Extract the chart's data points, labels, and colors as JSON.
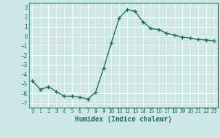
{
  "x": [
    0,
    1,
    2,
    3,
    4,
    5,
    6,
    7,
    8,
    9,
    10,
    11,
    12,
    13,
    14,
    15,
    16,
    17,
    18,
    19,
    20,
    21,
    22,
    23
  ],
  "y": [
    -4.7,
    -5.6,
    -5.3,
    -5.8,
    -6.3,
    -6.3,
    -6.4,
    -6.6,
    -5.9,
    -3.4,
    -0.7,
    1.9,
    2.8,
    2.6,
    1.5,
    0.8,
    0.7,
    0.3,
    0.1,
    -0.1,
    -0.2,
    -0.35,
    -0.4,
    -0.5
  ],
  "line_color": "#1a6b5e",
  "marker": "+",
  "marker_size": 4,
  "linewidth": 1.0,
  "xlabel": "Humidex (Indice chaleur)",
  "xlim": [
    -0.5,
    23.5
  ],
  "ylim": [
    -7.5,
    3.5
  ],
  "yticks": [
    -7,
    -6,
    -5,
    -4,
    -3,
    -2,
    -1,
    0,
    1,
    2,
    3
  ],
  "xticks": [
    0,
    1,
    2,
    3,
    4,
    5,
    6,
    7,
    8,
    9,
    10,
    11,
    12,
    13,
    14,
    15,
    16,
    17,
    18,
    19,
    20,
    21,
    22,
    23
  ],
  "bg_color": "#cde8e4",
  "grid_color": "#ffffff",
  "tick_labelsize": 5.5,
  "xlabel_fontsize": 7
}
